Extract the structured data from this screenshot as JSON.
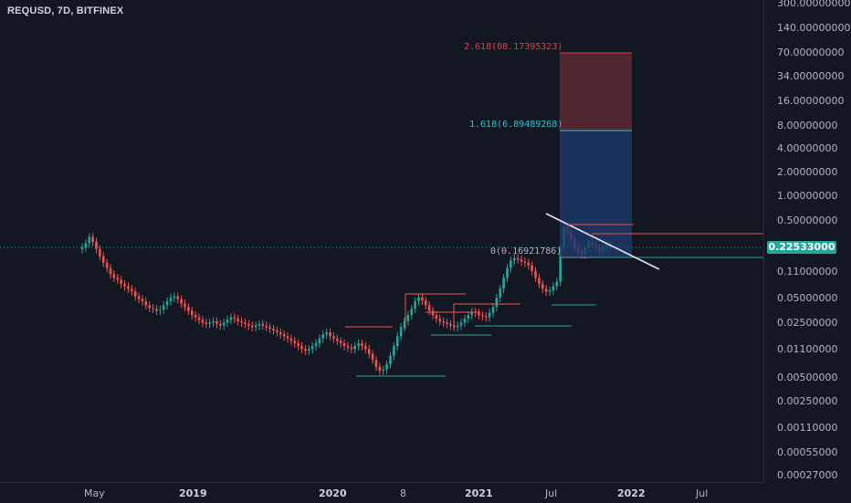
{
  "header": {
    "title": "REQUSD, 7D, BITFINEX"
  },
  "price_axis": {
    "labels": [
      "300.00000000",
      "140.00000000",
      "70.00000000",
      "34.00000000",
      "16.00000000",
      "8.00000000",
      "4.00000000",
      "2.00000000",
      "1.00000000",
      "0.50000000",
      "0.11000000",
      "0.05000000",
      "0.02500000",
      "0.01100000",
      "0.00500000",
      "0.00250000",
      "0.00110000",
      "0.00055000",
      "0.00027000"
    ],
    "current_price": "0.22533000"
  },
  "time_axis": {
    "labels": [
      "May",
      "2019",
      "2020",
      "8",
      "2021",
      "Jul",
      "2022",
      "Jul"
    ]
  },
  "fib": {
    "level_2618": "2.618(68.17395323)",
    "level_1618": "1.618(6.89489268)",
    "level_0": "0(0.16921786)"
  },
  "colors": {
    "up": "#26a69a",
    "down": "#ef5350",
    "background": "#131722",
    "fib_upper_fill": "#5c2a30",
    "fib_lower_fill": "#1d3a6b",
    "fib_red": "#f23645",
    "fib_blue": "#2ec2d6"
  },
  "chart_data": {
    "type": "candlestick",
    "title": "REQUSD, 7D, BITFINEX",
    "y_scale": "log",
    "ylim": [
      0.00027,
      300
    ],
    "x_ticks": [
      "May",
      "2019",
      "2020",
      "8",
      "2021",
      "Jul",
      "2022",
      "Jul"
    ],
    "series": [
      {
        "values": [
          0.22,
          0.25,
          0.3,
          0.26,
          0.21,
          0.17,
          0.14,
          0.12,
          0.1,
          0.09,
          0.085,
          0.075,
          0.07,
          0.065,
          0.06,
          0.052,
          0.048,
          0.045,
          0.04,
          0.037,
          0.036,
          0.034,
          0.035,
          0.04,
          0.045,
          0.05,
          0.052,
          0.048,
          0.042,
          0.038,
          0.034,
          0.03,
          0.028,
          0.026,
          0.024,
          0.023,
          0.024,
          0.025,
          0.023,
          0.022,
          0.024,
          0.026,
          0.028,
          0.027,
          0.025,
          0.024,
          0.023,
          0.022,
          0.021,
          0.022,
          0.023,
          0.022,
          0.021,
          0.02,
          0.019,
          0.018,
          0.017,
          0.016,
          0.015,
          0.014,
          0.013,
          0.012,
          0.011,
          0.0105,
          0.011,
          0.012,
          0.013,
          0.015,
          0.017,
          0.018,
          0.016,
          0.015,
          0.014,
          0.013,
          0.012,
          0.0115,
          0.011,
          0.012,
          0.013,
          0.012,
          0.011,
          0.0095,
          0.008,
          0.0065,
          0.0058,
          0.006,
          0.007,
          0.009,
          0.012,
          0.016,
          0.021,
          0.025,
          0.03,
          0.036,
          0.045,
          0.05,
          0.046,
          0.04,
          0.034,
          0.03,
          0.027,
          0.025,
          0.024,
          0.023,
          0.022,
          0.021,
          0.022,
          0.024,
          0.027,
          0.03,
          0.033,
          0.032,
          0.03,
          0.029,
          0.028,
          0.032,
          0.038,
          0.05,
          0.065,
          0.09,
          0.12,
          0.15,
          0.16,
          0.155,
          0.145,
          0.14,
          0.13,
          0.11,
          0.09,
          0.075,
          0.065,
          0.06,
          0.062,
          0.07,
          0.08,
          0.22,
          0.4,
          0.35,
          0.28,
          0.22,
          0.2,
          0.18,
          0.22,
          0.26,
          0.24,
          0.22,
          0.2,
          0.23,
          0.24,
          0.225
        ]
      }
    ],
    "drawings": {
      "fib_extension_levels": [
        {
          "ratio": 2.618,
          "price": 68.17395323,
          "label": "2.618(68.17395323)"
        },
        {
          "ratio": 1.618,
          "price": 6.89489268,
          "label": "1.618(6.89489268)"
        },
        {
          "ratio": 0,
          "price": 0.16921786,
          "label": "0(0.16921786)"
        }
      ],
      "last_price": 0.22533
    }
  }
}
